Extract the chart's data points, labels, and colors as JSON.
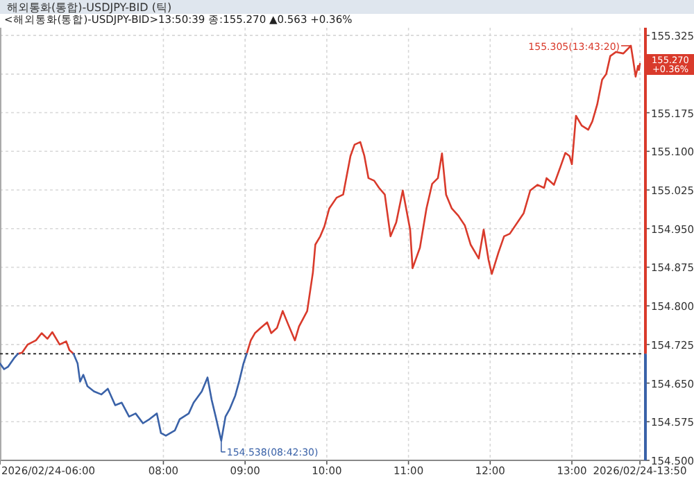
{
  "chart_data": {
    "type": "line",
    "title": "해외통화(통합)-USDJPY-BID (틱)",
    "subtitle": "<해외통화(통합)-USDJPY-BID>13:50:39 종:155.270 ▲0.563 +0.36%",
    "x": [
      6.0,
      6.05,
      6.1,
      6.17,
      6.22,
      6.27,
      6.34,
      6.44,
      6.51,
      6.58,
      6.64,
      6.73,
      6.81,
      6.85,
      6.9,
      6.95,
      6.98,
      7.02,
      7.07,
      7.15,
      7.24,
      7.32,
      7.41,
      7.49,
      7.58,
      7.66,
      7.75,
      7.83,
      7.92,
      7.97,
      8.03,
      8.14,
      8.2,
      8.31,
      8.37,
      8.47,
      8.54,
      8.59,
      8.64,
      8.708,
      8.76,
      8.81,
      8.88,
      8.93,
      8.98,
      9.02,
      9.07,
      9.12,
      9.19,
      9.27,
      9.32,
      9.39,
      9.46,
      9.53,
      9.61,
      9.66,
      9.76,
      9.83,
      9.86,
      9.92,
      9.97,
      10.03,
      10.12,
      10.2,
      10.29,
      10.34,
      10.41,
      10.46,
      10.51,
      10.58,
      10.64,
      10.71,
      10.78,
      10.85,
      10.93,
      11.02,
      11.05,
      11.14,
      11.22,
      11.29,
      11.36,
      11.41,
      11.46,
      11.53,
      11.61,
      11.69,
      11.76,
      11.86,
      11.92,
      11.98,
      12.02,
      12.1,
      12.17,
      12.24,
      12.41,
      12.49,
      12.58,
      12.66,
      12.69,
      12.78,
      12.86,
      12.92,
      12.97,
      13.0,
      13.05,
      13.12,
      13.2,
      13.25,
      13.31,
      13.37,
      13.42,
      13.47,
      13.54,
      13.63,
      13.722,
      13.75,
      13.78,
      13.81,
      13.82,
      13.833
    ],
    "series": [
      {
        "color": "#d93a2b",
        "values": [
          null,
          null,
          null,
          null,
          154.707,
          154.709,
          154.725,
          154.733,
          154.747,
          154.736,
          154.749,
          154.725,
          154.731,
          154.714,
          154.707,
          null,
          null,
          null,
          null,
          null,
          null,
          null,
          null,
          null,
          null,
          null,
          null,
          null,
          null,
          null,
          null,
          null,
          null,
          null,
          null,
          null,
          null,
          null,
          null,
          null,
          null,
          null,
          null,
          null,
          null,
          154.707,
          154.733,
          154.747,
          154.757,
          154.768,
          154.747,
          154.757,
          154.79,
          154.763,
          154.733,
          154.76,
          154.79,
          154.865,
          154.919,
          154.935,
          154.954,
          154.989,
          155.01,
          155.016,
          155.091,
          155.113,
          155.118,
          155.091,
          155.048,
          155.043,
          155.029,
          155.016,
          154.935,
          154.962,
          155.024,
          154.948,
          154.873,
          154.913,
          154.989,
          155.037,
          155.048,
          155.096,
          155.016,
          154.989,
          154.975,
          154.956,
          154.919,
          154.892,
          154.948,
          154.889,
          154.862,
          154.903,
          154.935,
          154.94,
          154.98,
          155.024,
          155.035,
          155.029,
          155.048,
          155.035,
          155.07,
          155.097,
          155.091,
          155.075,
          155.169,
          155.15,
          155.142,
          155.158,
          155.191,
          155.239,
          155.25,
          155.285,
          155.293,
          155.29,
          155.305,
          155.277,
          155.245,
          155.266,
          155.258,
          155.27
        ]
      },
      {
        "color": "#3a62a8",
        "values": [
          154.688,
          154.677,
          154.682,
          154.698,
          154.707,
          null,
          null,
          null,
          null,
          null,
          null,
          null,
          null,
          null,
          154.707,
          154.688,
          154.653,
          154.666,
          154.644,
          154.634,
          154.628,
          154.639,
          154.607,
          154.612,
          154.585,
          154.591,
          154.572,
          154.58,
          154.591,
          154.553,
          154.548,
          154.558,
          154.58,
          154.591,
          154.612,
          154.634,
          154.661,
          154.618,
          154.585,
          154.538,
          154.585,
          154.599,
          154.626,
          154.655,
          154.688,
          154.707,
          null,
          null,
          null,
          null,
          null,
          null,
          null,
          null,
          null,
          null,
          null,
          null,
          null,
          null,
          null,
          null,
          null,
          null,
          null,
          null,
          null,
          null,
          null,
          null,
          null,
          null,
          null,
          null,
          null,
          null,
          null,
          null,
          null,
          null,
          null,
          null,
          null,
          null,
          null,
          null,
          null,
          null,
          null,
          null,
          null,
          null,
          null,
          null,
          null,
          null,
          null,
          null,
          null,
          null,
          null,
          null,
          null,
          null,
          null,
          null,
          null,
          null,
          null,
          null,
          null,
          null,
          null,
          null,
          null,
          null,
          null,
          null,
          null,
          null
        ]
      }
    ],
    "xlim": [
      6,
      13.9
    ],
    "xticks": [
      {
        "value": 6,
        "label": "2026/02/24-06:00"
      },
      {
        "value": 8,
        "label": "08:00"
      },
      {
        "value": 9,
        "label": "09:00"
      },
      {
        "value": 10,
        "label": "10:00"
      },
      {
        "value": 11,
        "label": "11:00"
      },
      {
        "value": 12,
        "label": "12:00"
      },
      {
        "value": 13,
        "label": "13:00"
      },
      {
        "value": 13.833,
        "label": "2026/02/24-13:50"
      }
    ],
    "ylim": [
      154.5,
      155.34
    ],
    "yticks": [
      {
        "value": 154.5,
        "label": "154.500"
      },
      {
        "value": 154.575,
        "label": "154.575"
      },
      {
        "value": 154.65,
        "label": "154.650"
      },
      {
        "value": 154.725,
        "label": "154.725"
      },
      {
        "value": 154.8,
        "label": "154.800"
      },
      {
        "value": 154.875,
        "label": "154.875"
      },
      {
        "value": 154.95,
        "label": "154.950"
      },
      {
        "value": 155.025,
        "label": "155.025"
      },
      {
        "value": 155.1,
        "label": "155.100"
      },
      {
        "value": 155.175,
        "label": "155.175"
      },
      {
        "value": 155.25,
        "label": null
      },
      {
        "value": 155.325,
        "label": "155.325"
      }
    ],
    "grid": true,
    "ref_lines": [
      {
        "axis": "y",
        "value": 154.707,
        "color": "#333333",
        "line_style": "dotted"
      }
    ],
    "annotations": [
      {
        "text": "155.305(13:43:20)",
        "x": 13.722,
        "y": 155.305
      },
      {
        "text": "154.538(08:42:30)",
        "x": 8.708,
        "y": 154.538
      },
      {
        "text": "155.270 +0.36%",
        "x": 13.833,
        "y": 155.27
      }
    ]
  }
}
